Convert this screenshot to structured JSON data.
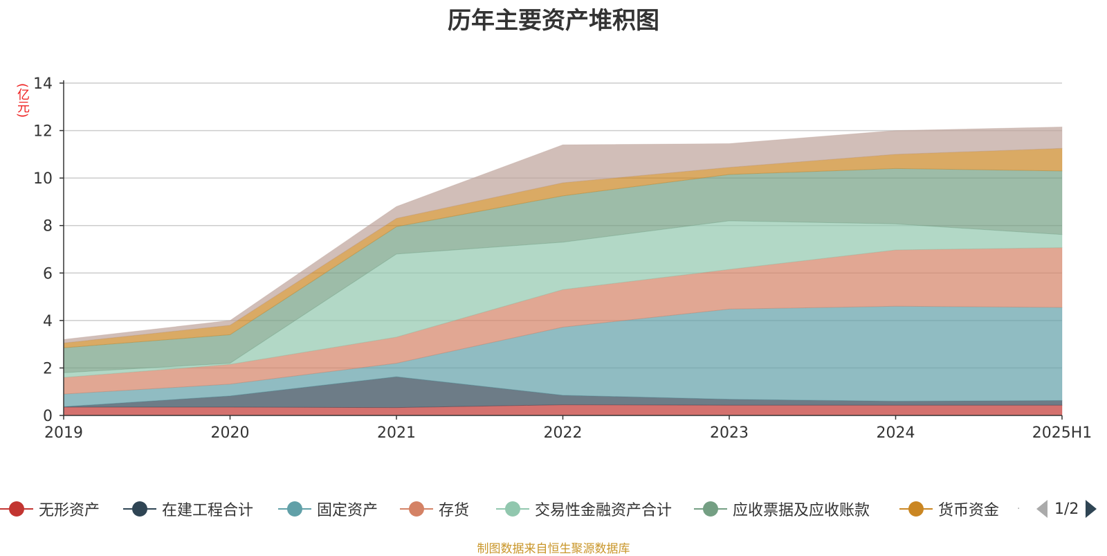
{
  "chart_data": {
    "type": "area",
    "stacked": true,
    "title": "历年主要资产堆积图",
    "ylabel": "(亿元)",
    "xlabel": "",
    "categories": [
      "2019",
      "2020",
      "2021",
      "2022",
      "2023",
      "2024",
      "2025H1"
    ],
    "ylim": [
      0,
      14
    ],
    "yticks": [
      0,
      2,
      4,
      6,
      8,
      10,
      12,
      14
    ],
    "grid": true,
    "series": [
      {
        "name": "无形资产",
        "color": "#c23531",
        "values": [
          0.35,
          0.35,
          0.33,
          0.45,
          0.43,
          0.43,
          0.43
        ]
      },
      {
        "name": "在建工程合计",
        "color": "#2f4554",
        "values": [
          0.02,
          0.47,
          1.3,
          0.4,
          0.25,
          0.17,
          0.2
        ]
      },
      {
        "name": "固定资产",
        "color": "#61a0a8",
        "values": [
          0.53,
          0.5,
          0.57,
          2.87,
          3.8,
          4.0,
          3.92
        ]
      },
      {
        "name": "存货",
        "color": "#d48265",
        "values": [
          0.7,
          0.83,
          1.1,
          1.58,
          1.67,
          2.37,
          2.52
        ]
      },
      {
        "name": "交易性金融资产合计",
        "color": "#91c7ae",
        "values": [
          0.2,
          0.05,
          3.5,
          2.0,
          2.05,
          1.1,
          0.55
        ]
      },
      {
        "name": "应收票据及应收账款",
        "color": "#749f83",
        "values": [
          1.05,
          1.2,
          1.15,
          1.95,
          1.95,
          2.33,
          2.68
        ]
      },
      {
        "name": "货币资金",
        "color": "#ca8622",
        "values": [
          0.2,
          0.4,
          0.35,
          0.55,
          0.3,
          0.6,
          0.95
        ]
      },
      {
        "name": "",
        "color": "#bda29a",
        "values": [
          0.15,
          0.2,
          0.5,
          1.6,
          1.0,
          1.0,
          0.9
        ]
      }
    ],
    "legend_position": "bottom",
    "legend_page": "1/2"
  },
  "footer": {
    "source": "制图数据来自恒生聚源数据库"
  }
}
